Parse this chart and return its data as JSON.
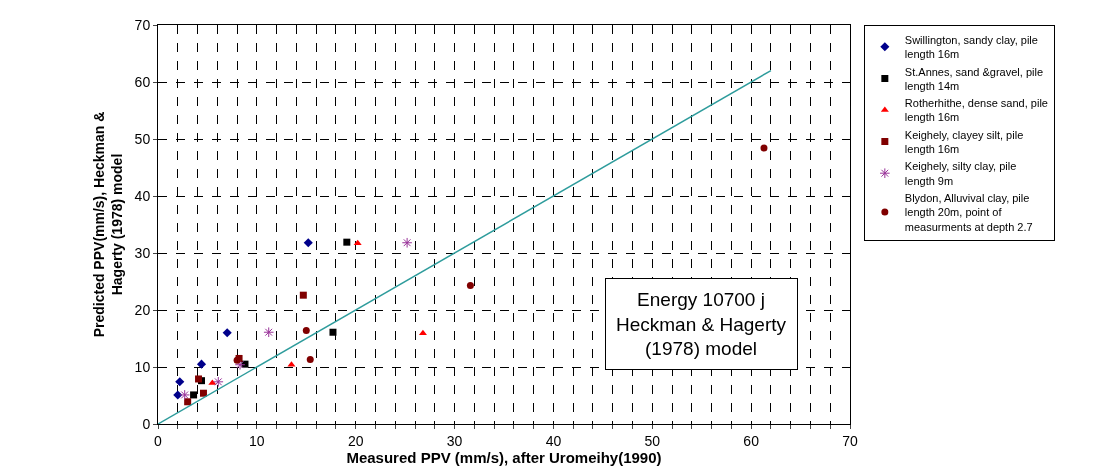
{
  "chart_data": {
    "type": "scatter",
    "xlabel": "Measured PPV (mm/s), after Uromeihy(1990)",
    "ylabel": "Predicted PPV(mm/s), Heckman & Hagerty (1978) model",
    "xlim": [
      0,
      70
    ],
    "ylim": [
      0,
      70
    ],
    "xticks": [
      0,
      {
        "value": 2,
        "label": null
      },
      {
        "value": 4,
        "label": null
      },
      {
        "value": 6,
        "label": null
      },
      {
        "value": 8,
        "label": null
      },
      10,
      {
        "value": 12,
        "label": null
      },
      {
        "value": 14,
        "label": null
      },
      {
        "value": 16,
        "label": null
      },
      {
        "value": 18,
        "label": null
      },
      20,
      {
        "value": 22,
        "label": null
      },
      {
        "value": 24,
        "label": null
      },
      {
        "value": 26,
        "label": null
      },
      {
        "value": 28,
        "label": null
      },
      30,
      {
        "value": 32,
        "label": null
      },
      {
        "value": 34,
        "label": null
      },
      {
        "value": 36,
        "label": null
      },
      {
        "value": 38,
        "label": null
      },
      40,
      {
        "value": 42,
        "label": null
      },
      {
        "value": 44,
        "label": null
      },
      {
        "value": 46,
        "label": null
      },
      {
        "value": 48,
        "label": null
      },
      50,
      {
        "value": 52,
        "label": null
      },
      {
        "value": 54,
        "label": null
      },
      {
        "value": 56,
        "label": null
      },
      {
        "value": 58,
        "label": null
      },
      60,
      {
        "value": 62,
        "label": null
      },
      {
        "value": 64,
        "label": null
      },
      {
        "value": 66,
        "label": null
      },
      {
        "value": 68,
        "label": null
      },
      70
    ],
    "yticks": [
      0,
      10,
      20,
      30,
      40,
      50,
      60,
      70
    ],
    "grid": true,
    "legend": "right",
    "annotations": [
      "Energy 10700 j\nHeckman & Hagerty\n(1978) model"
    ],
    "series": [
      {
        "name": "Swillington, sandy clay, pile length 16m",
        "color": "#00008b",
        "marker": "diamond",
        "x": [
          15.2,
          7.0,
          4.4,
          2.2,
          2.0
        ],
        "values": [
          31.8,
          16.0,
          10.5,
          7.4,
          5.1
        ]
      },
      {
        "name": "St.Annes, sand &gravel, pile length 14m",
        "color": "#000000",
        "marker": "square",
        "x": [
          19.1,
          17.7,
          8.8,
          4.4,
          3.6
        ],
        "values": [
          31.9,
          16.1,
          10.5,
          7.6,
          5.1
        ]
      },
      {
        "name": "Rotherhithe, dense sand, pile length 16m",
        "color": "#ff0000",
        "marker": "triangle",
        "x": [
          20.2,
          26.8,
          13.5,
          5.5
        ],
        "values": [
          31.7,
          15.9,
          10.4,
          7.2
        ]
      },
      {
        "name": "Keighely, clayey silt, pile length 16m",
        "color": "#800000",
        "marker": "square",
        "x": [
          14.7,
          8.2,
          4.1,
          4.6,
          3.0
        ],
        "values": [
          22.6,
          11.5,
          7.9,
          5.4,
          3.9
        ]
      },
      {
        "name": "Keighely, silty clay, pile length 9m",
        "color": "#993399",
        "marker": "cross",
        "x": [
          25.2,
          11.2,
          6.1,
          8.3,
          2.7
        ],
        "values": [
          31.8,
          16.1,
          7.4,
          10.4,
          5.1
        ]
      },
      {
        "name": "Blydon, Alluvival clay, pile length 20m, point of measurments at depth 2.7",
        "color": "#800000",
        "marker": "circle",
        "x": [
          15.0,
          15.4,
          8.0,
          31.6,
          61.3
        ],
        "values": [
          16.4,
          11.3,
          11.2,
          24.3,
          48.4
        ]
      },
      {
        "type": "line",
        "color": "#2e9c9c",
        "marker": "none",
        "x": [
          0,
          62
        ],
        "values": [
          0,
          62
        ]
      }
    ]
  }
}
